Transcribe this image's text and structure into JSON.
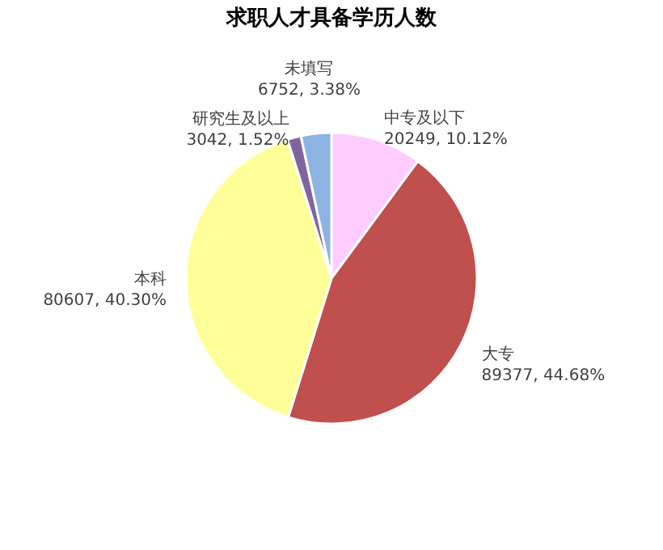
{
  "chart_data": {
    "type": "pie",
    "title": "求职人才具备学历人数",
    "categories": [
      "中专及以下",
      "大专",
      "本科",
      "研究生及以上",
      "未填写"
    ],
    "values": [
      20249,
      89377,
      80607,
      3042,
      6752
    ],
    "value_labels": [
      "20249, 10.12%",
      "89377, 44.68%",
      "80607, 40.30%",
      "3042, 1.52%",
      "6752, 3.38%"
    ],
    "colors": [
      "#ffccff",
      "#c0504d",
      "#ffff99",
      "#8064a2",
      "#8db3e2"
    ],
    "legend": false
  }
}
